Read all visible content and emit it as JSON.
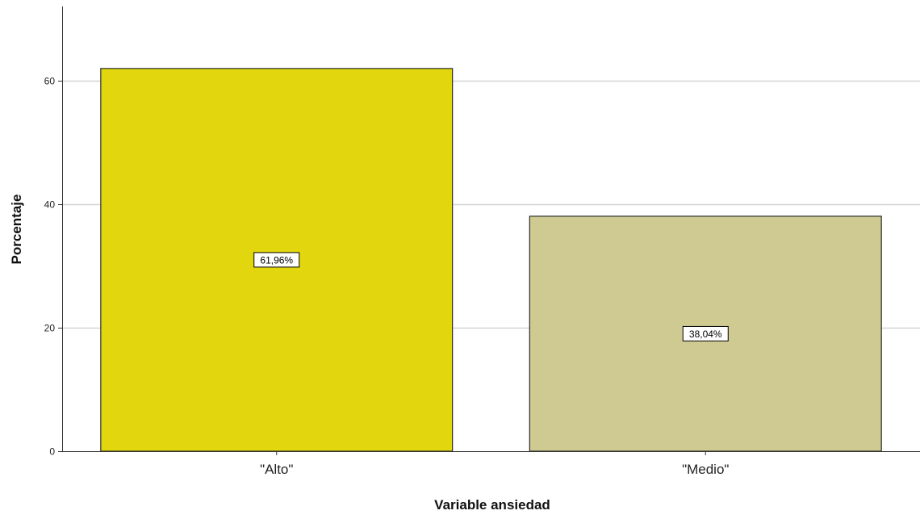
{
  "chart_data": {
    "type": "bar",
    "categories": [
      "\"Alto\"",
      "\"Medio\""
    ],
    "values": [
      61.96,
      38.04
    ],
    "data_labels": [
      "61,96%",
      "38,04%"
    ],
    "colors": [
      "#e2d70e",
      "#cfca91"
    ],
    "bar_outline_color": "#2b2b2b",
    "gridline_color": "#d3d3d3",
    "xlabel": "Variable ansiedad",
    "ylabel": "Porcentaje",
    "ylim": [
      0,
      72
    ],
    "yticks": [
      0,
      20,
      40,
      60
    ],
    "grid": true,
    "legend": "none"
  }
}
